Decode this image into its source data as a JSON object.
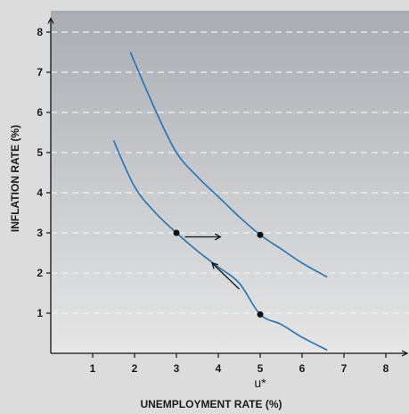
{
  "chart_data": {
    "type": "line",
    "title": "",
    "xlabel": "UNEMPLOYMENT RATE (%)",
    "ylabel": "INFLATION RATE (%)",
    "xlim": [
      0,
      8.2
    ],
    "ylim": [
      0,
      8.3
    ],
    "xticks": [
      1,
      2,
      3,
      4,
      5,
      6,
      7,
      8
    ],
    "yticks": [
      1,
      2,
      3,
      4,
      5,
      6,
      7,
      8
    ],
    "x_marker_label": "u*",
    "x_marker_value": 5,
    "grid": "horizontal dashed",
    "series": [
      {
        "x": [
          1.5,
          2.0,
          2.5,
          3.0,
          3.5,
          4.0,
          4.5,
          5.0,
          5.5,
          6.0,
          6.6
        ],
        "y": [
          5.3,
          4.15,
          3.5,
          3.0,
          2.55,
          2.15,
          1.75,
          0.97,
          0.72,
          0.4,
          0.08
        ]
      },
      {
        "x": [
          1.9,
          2.5,
          3.0,
          3.5,
          4.0,
          4.5,
          5.0,
          5.5,
          6.0,
          6.6
        ],
        "y": [
          7.5,
          6.05,
          5.0,
          4.4,
          3.9,
          3.4,
          2.95,
          2.6,
          2.25,
          1.9
        ]
      }
    ],
    "points": [
      {
        "x": 3,
        "y": 3
      },
      {
        "x": 5,
        "y": 2.95
      },
      {
        "x": 5,
        "y": 0.97
      }
    ],
    "arrows": [
      {
        "from": [
          3.2,
          2.9
        ],
        "to": [
          4.05,
          2.9
        ]
      },
      {
        "from": [
          4.5,
          1.6
        ],
        "to": [
          3.85,
          2.25
        ]
      }
    ],
    "colors": {
      "line": "#1f74b6",
      "point": "#111111",
      "arrow": "#111111",
      "grid": "#f2f2f2",
      "plot_top": "#a9adb2",
      "plot_bottom": "#e6e6e6"
    }
  }
}
